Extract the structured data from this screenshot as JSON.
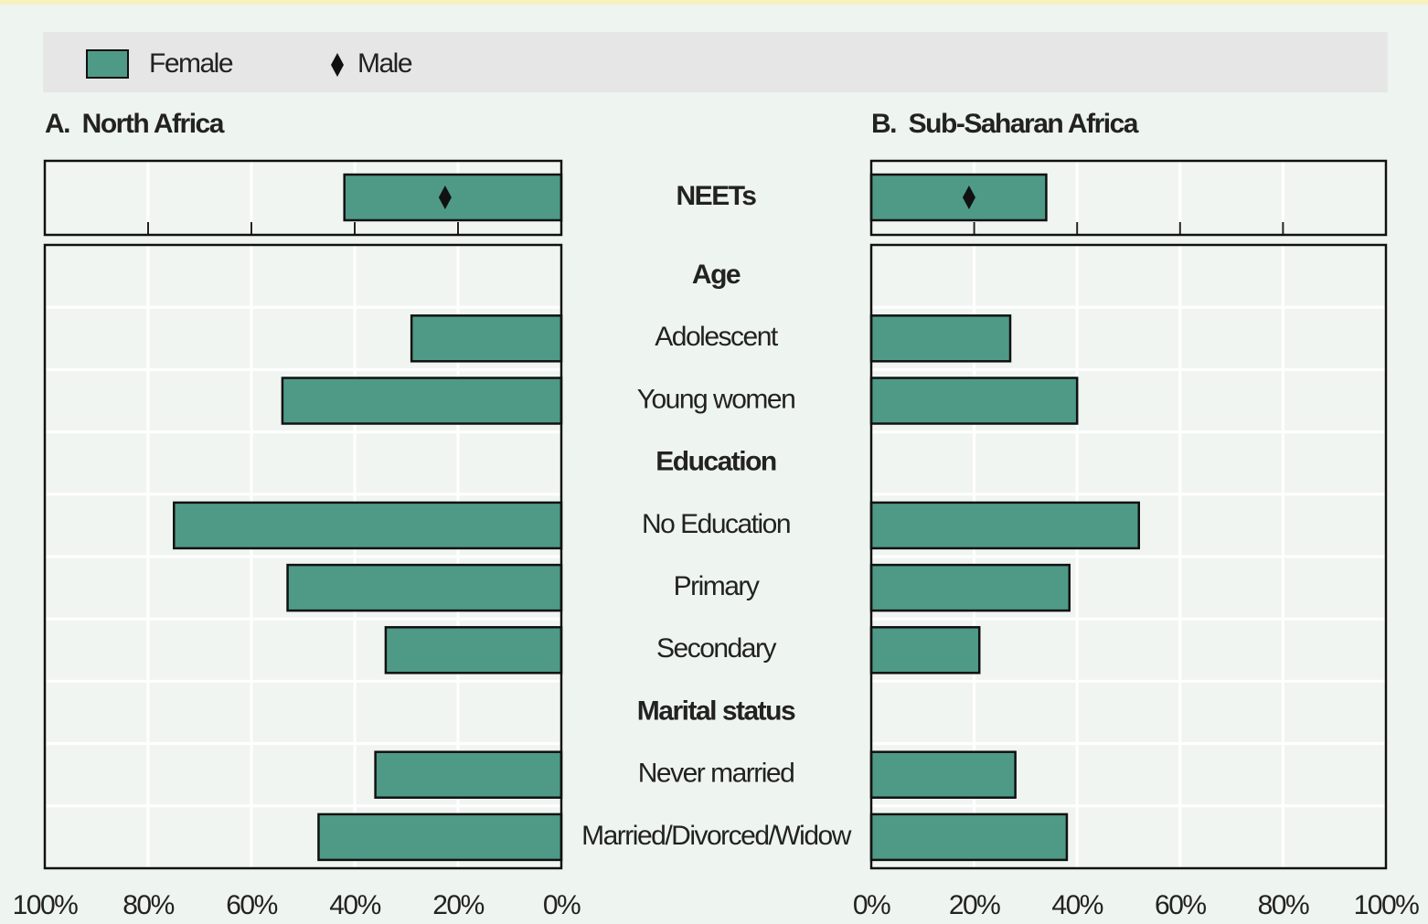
{
  "categories": [
    "NEETs",
    "Age",
    "Adolescent",
    "Young women",
    "Education",
    "No Education",
    "Primary",
    "Secondary",
    "Marital status",
    "Never married",
    "Married/Divorced/Widow"
  ],
  "bold": [
    true,
    true,
    false,
    false,
    true,
    false,
    false,
    false,
    true,
    false,
    false
  ],
  "chart_data": [
    {
      "type": "bar",
      "orientation": "horizontal",
      "title": "A.  North Africa",
      "xlim": [
        0,
        100
      ],
      "xreverse": true,
      "xticks": [
        {
          "value": 100,
          "label": "100%"
        },
        {
          "value": 80,
          "label": "80%"
        },
        {
          "value": 60,
          "label": "60%"
        },
        {
          "value": 40,
          "label": "40%"
        },
        {
          "value": 20,
          "label": "20%"
        },
        {
          "value": 0,
          "label": "0%"
        }
      ],
      "grid": true,
      "series": [
        {
          "name": "Female",
          "color": "#4e9a87",
          "values": [
            42,
            null,
            29,
            54,
            null,
            75,
            53,
            34,
            null,
            36,
            47
          ]
        },
        {
          "name": "Male",
          "marker": "diamond",
          "color": "#111111",
          "values": [
            22.5,
            null,
            null,
            null,
            null,
            null,
            null,
            null,
            null,
            null,
            null
          ]
        }
      ]
    },
    {
      "type": "bar",
      "orientation": "horizontal",
      "title": "B.  Sub-Saharan Africa",
      "xlim": [
        0,
        100
      ],
      "xreverse": false,
      "xticks": [
        {
          "value": 0,
          "label": "0%"
        },
        {
          "value": 20,
          "label": "20%"
        },
        {
          "value": 40,
          "label": "40%"
        },
        {
          "value": 60,
          "label": "60%"
        },
        {
          "value": 80,
          "label": "80%"
        },
        {
          "value": 100,
          "label": "100%"
        }
      ],
      "grid": true,
      "series": [
        {
          "color": "#4e9a87",
          "values": [
            34,
            null,
            27,
            40,
            null,
            52,
            38.5,
            21,
            null,
            28,
            38
          ]
        },
        {
          "marker": "diamond",
          "color": "#111111",
          "values": [
            19,
            null,
            null,
            null,
            null,
            null,
            null,
            null,
            null,
            null,
            null
          ]
        }
      ]
    }
  ]
}
